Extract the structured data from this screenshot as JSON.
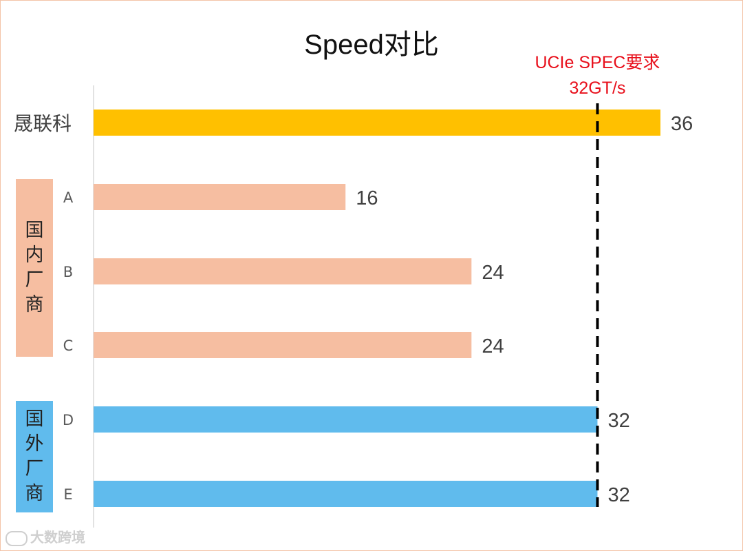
{
  "chart_data": {
    "type": "bar",
    "orientation": "horizontal",
    "title": "Speed对比",
    "categories": [
      "晟联科",
      "A",
      "B",
      "C",
      "D",
      "E"
    ],
    "values": [
      36,
      16,
      24,
      24,
      32,
      32
    ],
    "data_labels": [
      "36",
      "16",
      "24",
      "24",
      "32",
      "32"
    ],
    "bar_colors": [
      "#ffc000",
      "#f6bea1",
      "#f6bea1",
      "#f6bea1",
      "#60bbed",
      "#60bbed"
    ],
    "xlim": [
      0,
      36
    ],
    "reference_line": {
      "value": 32,
      "style": "dashed",
      "color": "#000000",
      "label_line1": "UCIe SPEC要求",
      "label_line2": "32GT/s",
      "label_color": "#e8101c"
    },
    "groups": [
      {
        "label": "国内厂商",
        "chars": [
          "国",
          "内",
          "厂",
          "商"
        ],
        "members": [
          "A",
          "B",
          "C"
        ],
        "color": "#f6bea1"
      },
      {
        "label": "国外厂商",
        "chars": [
          "国",
          "外",
          "厂",
          "商"
        ],
        "members": [
          "D",
          "E"
        ],
        "color": "#60bbed"
      }
    ],
    "grid": false,
    "legend": "none"
  },
  "watermark": "大数跨境"
}
